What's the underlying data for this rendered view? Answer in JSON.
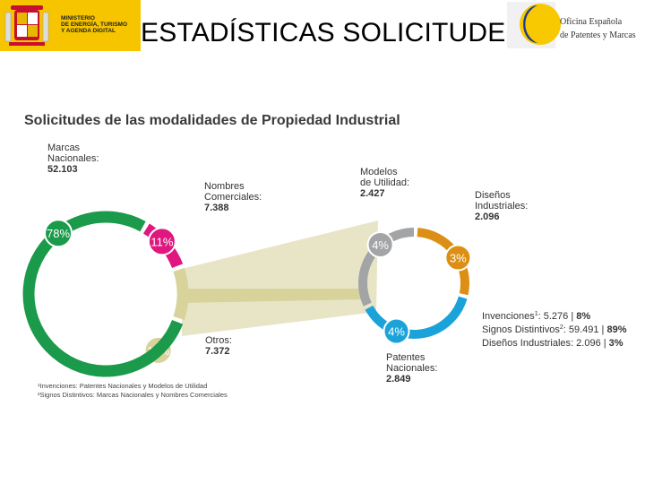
{
  "header": {
    "ministry": [
      "MINISTERIO",
      "DE ENERGÍA, TURISMO",
      "Y AGENDA DIGITAL"
    ],
    "title": "ESTADÍSTICAS SOLICITUDES",
    "oepm": [
      "Oficina Española",
      "de Patentes y Marcas"
    ]
  },
  "chart_data": {
    "type": "pie",
    "title": "Solicitudes de las modalidades de Propiedad Industrial",
    "total_donut": [
      {
        "name": "Marcas Nacionales",
        "label": "Marcas\nNacionales:",
        "value": 52103,
        "value_text": "52.103",
        "pct": 78,
        "pct_text": "78%",
        "color": "#1a9a4a"
      },
      {
        "name": "Nombres Comerciales",
        "label": "Nombres\nComerciales:",
        "value": 7388,
        "value_text": "7.388",
        "pct": 11,
        "pct_text": "11%",
        "color": "#e0177f"
      },
      {
        "name": "Otros",
        "label": "Otros:",
        "value": 7372,
        "value_text": "7.372",
        "pct": 11,
        "pct_text": "11%",
        "color": "#d8d39a"
      }
    ],
    "otros_donut": [
      {
        "name": "Modelos de Utilidad",
        "label": "Modelos\nde Utilidad:",
        "value": 2427,
        "value_text": "2.427",
        "pct": 4,
        "pct_text": "4%",
        "color": "#a2a4a6"
      },
      {
        "name": "Diseños Industriales",
        "label": "Diseños\nIndustriales:",
        "value": 2096,
        "value_text": "2.096",
        "pct": 3,
        "pct_text": "3%",
        "color": "#dc8f14"
      },
      {
        "name": "Patentes Nacionales",
        "label": "Patentes\nNacionales:",
        "value": 2849,
        "value_text": "2.849",
        "pct": 4,
        "pct_text": "4%",
        "color": "#1ba3d9"
      }
    ],
    "summary": [
      {
        "label": "Invenciones",
        "sup": "1",
        "value_text": "5.276",
        "pct_text": "8%"
      },
      {
        "label": "Signos Distintivos",
        "sup": "2",
        "value_text": "59.491",
        "pct_text": "89%"
      },
      {
        "label": "Diseños Industriales",
        "sup": "",
        "value_text": "2.096",
        "pct_text": "3%"
      }
    ],
    "footnotes": [
      "¹Invenciones: Patentes Nacionales y Modelos de Utilidad",
      "²Signos Distintivos: Marcas Nacionales y Nombres Comerciales"
    ]
  }
}
